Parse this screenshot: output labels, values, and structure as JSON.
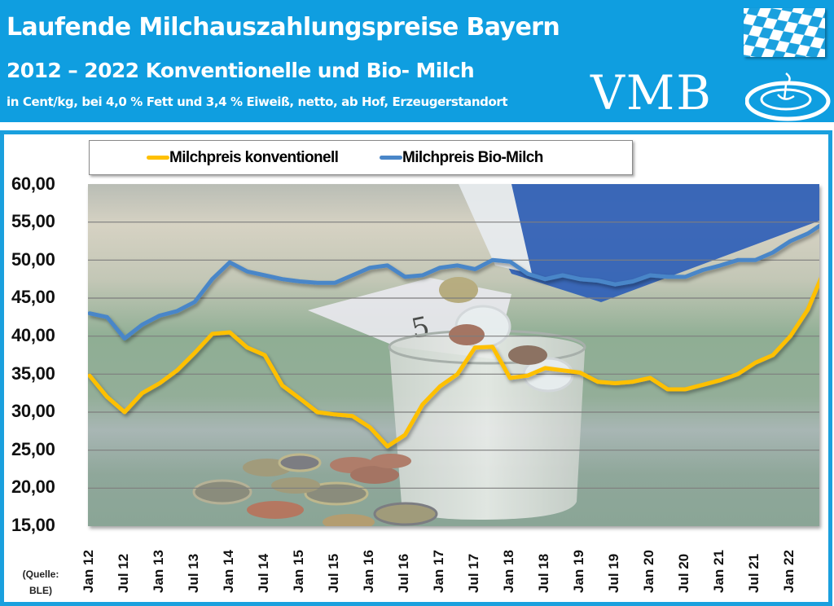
{
  "header": {
    "title": "Laufende Milchauszahlungspreise Bayern",
    "subtitle": "2012 – 2022 Konventionelle und Bio- Milch",
    "unit_note": "in Cent/kg, bei 4,0 % Fett und 3,4 % Eiweiß, netto, ab Hof, Erzeugerstandort",
    "logo_text": "VMB",
    "flag_icon": "bavaria-flag-icon"
  },
  "colors": {
    "header_bg": "#0f9ee0",
    "frame_border": "#1aa0de",
    "conventional": "#ffc000",
    "bio": "#4a86c8"
  },
  "source_note": "(Quelle: BLE)",
  "chart_data": {
    "type": "line",
    "title": "Laufende Milchauszahlungspreise Bayern 2012 – 2022 Konventionelle und Bio- Milch",
    "subtitle": "in Cent/kg, bei 4,0 % Fett und 3,4 % Eiweiß, netto, ab Hof, Erzeugerstandort",
    "xlabel": "",
    "ylabel": "Cent/kg",
    "ylim": [
      15,
      60
    ],
    "y_ticks": [
      "60,00",
      "55,00",
      "50,00",
      "45,00",
      "40,00",
      "35,00",
      "30,00",
      "25,00",
      "20,00",
      "15,00"
    ],
    "x_ticks": [
      "Jan 12",
      "Jul 12",
      "Jan 13",
      "Jul 13",
      "Jan 14",
      "Jul 14",
      "Jan 15",
      "Jul 15",
      "Jan 16",
      "Jul 16",
      "Jan 17",
      "Jul 17",
      "Jan 18",
      "Jul 18",
      "Jan 19",
      "Jul 19",
      "Jan 20",
      "Jul 20",
      "Jan 21",
      "Jul 21",
      "Jan 22"
    ],
    "grid": true,
    "legend_position": "top",
    "x": [
      "Jan 12",
      "Apr 12",
      "Jul 12",
      "Oct 12",
      "Jan 13",
      "Apr 13",
      "Jul 13",
      "Oct 13",
      "Jan 14",
      "Apr 14",
      "Jul 14",
      "Oct 14",
      "Jan 15",
      "Apr 15",
      "Jul 15",
      "Oct 15",
      "Jan 16",
      "Apr 16",
      "Jul 16",
      "Oct 16",
      "Jan 17",
      "Apr 17",
      "Jul 17",
      "Oct 17",
      "Jan 18",
      "Apr 18",
      "Jul 18",
      "Oct 18",
      "Jan 19",
      "Apr 19",
      "Jul 19",
      "Oct 19",
      "Jan 20",
      "Apr 20",
      "Jul 20",
      "Oct 20",
      "Jan 21",
      "Apr 21",
      "Jul 21",
      "Oct 21",
      "Jan 22",
      "Apr 22",
      "Jul 22"
    ],
    "series": [
      {
        "name": "Milchpreis konventionell",
        "color": "#ffc000",
        "values": [
          34.8,
          32.0,
          30.0,
          32.5,
          33.8,
          35.5,
          37.8,
          40.3,
          40.5,
          38.5,
          37.5,
          33.5,
          31.8,
          30.0,
          29.7,
          29.5,
          28.0,
          25.5,
          27.0,
          31.0,
          33.4,
          35.0,
          38.5,
          38.6,
          34.5,
          34.8,
          35.8,
          35.5,
          35.2,
          34.0,
          33.8,
          34.0,
          34.5,
          33.0,
          33.0,
          33.6,
          34.2,
          35.0,
          36.5,
          37.5,
          40.0,
          43.5,
          49.0
        ]
      },
      {
        "name": "Milchpreis Bio-Milch",
        "color": "#4a86c8",
        "values": [
          43.0,
          42.5,
          39.7,
          41.5,
          42.7,
          43.3,
          44.5,
          47.5,
          49.7,
          48.5,
          48.0,
          47.5,
          47.2,
          47.0,
          47.0,
          48.0,
          49.0,
          49.3,
          47.8,
          48.0,
          49.0,
          49.3,
          48.8,
          50.0,
          49.8,
          48.2,
          47.5,
          48.0,
          47.5,
          47.3,
          46.8,
          47.2,
          48.0,
          47.8,
          47.8,
          48.7,
          49.3,
          50.0,
          50.0,
          51.0,
          52.5,
          53.5,
          55.0
        ]
      }
    ]
  }
}
